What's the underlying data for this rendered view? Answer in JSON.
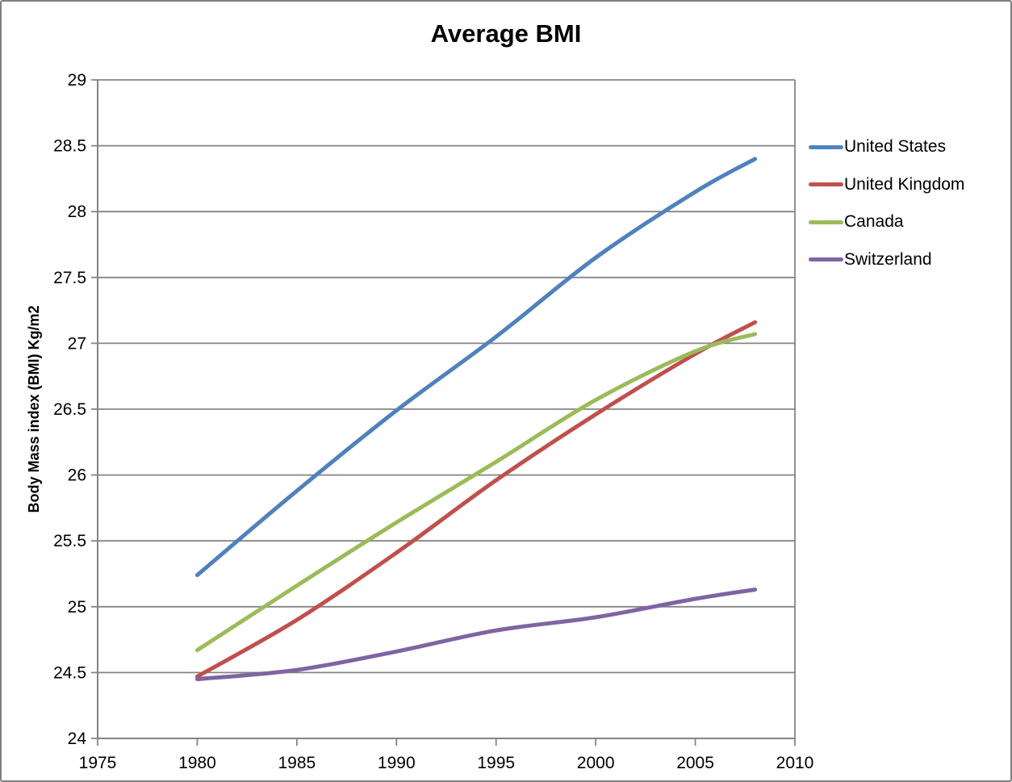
{
  "page": {
    "title": "Average BMI"
  },
  "chart_data": {
    "type": "line",
    "title": "Average BMI",
    "xlabel": "",
    "ylabel": "Body Mass index (BMI) Kg/m2",
    "xlim": [
      1975,
      2010
    ],
    "ylim": [
      24,
      29
    ],
    "xticks": [
      1975,
      1980,
      1985,
      1990,
      1995,
      2000,
      2005,
      2010
    ],
    "yticks": [
      24,
      24.5,
      25,
      25.5,
      26,
      26.5,
      27,
      27.5,
      28,
      28.5,
      29
    ],
    "grid": "horizontal",
    "legend_position": "right",
    "line_style": "smooth",
    "x": [
      1980,
      1985,
      1990,
      1995,
      2000,
      2005,
      2008
    ],
    "series": [
      {
        "name": "United States",
        "color": "#4F81BD",
        "values": [
          25.24,
          25.88,
          26.49,
          27.05,
          27.65,
          28.15,
          28.4
        ]
      },
      {
        "name": "United Kingdom",
        "color": "#C0504D",
        "values": [
          24.47,
          24.9,
          25.41,
          25.96,
          26.46,
          26.92,
          27.16
        ]
      },
      {
        "name": "Canada",
        "color": "#9BBB59",
        "values": [
          24.67,
          25.16,
          25.64,
          26.1,
          26.57,
          26.94,
          27.07
        ]
      },
      {
        "name": "Switzerland",
        "color": "#8064A2",
        "values": [
          24.45,
          24.52,
          24.66,
          24.82,
          24.92,
          25.06,
          25.13
        ]
      }
    ]
  },
  "colors": {
    "grid": "#848484",
    "axis": "#848484",
    "tick_text": "#000000",
    "title_text": "#000000",
    "frame_border": "#7f7f7f",
    "background": "#ffffff"
  }
}
